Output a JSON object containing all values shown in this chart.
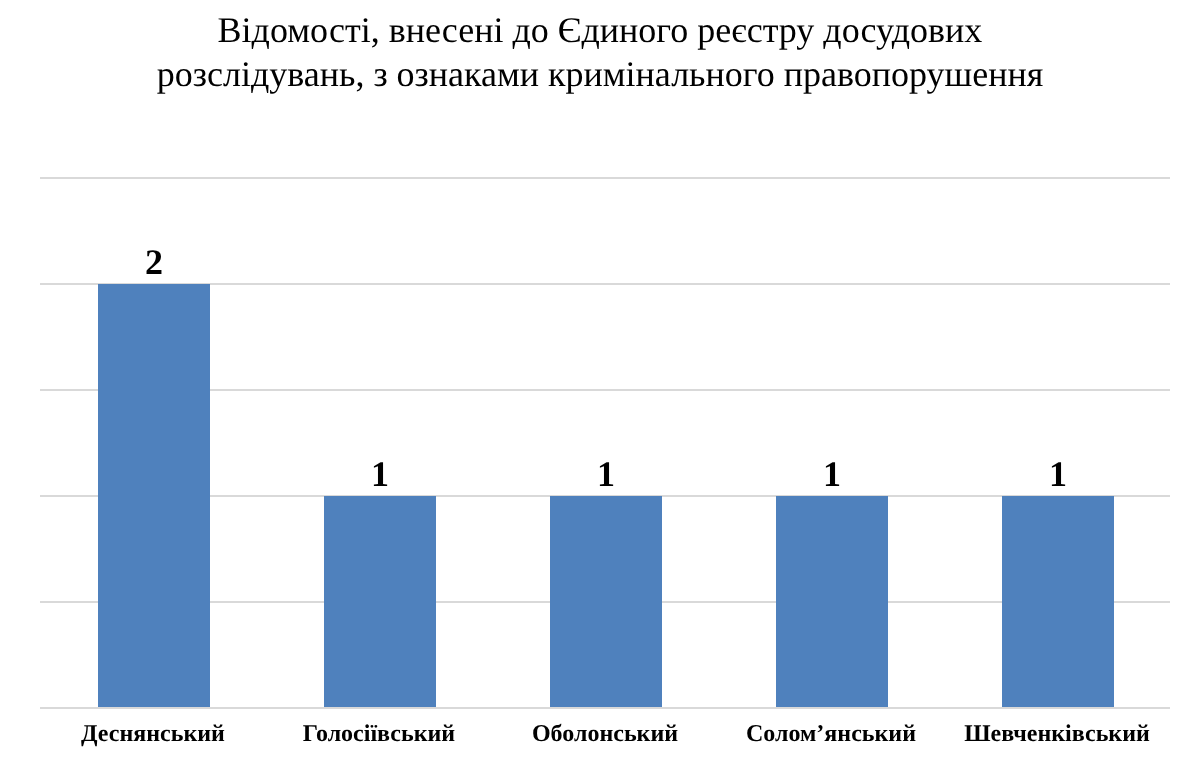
{
  "chart_data": {
    "type": "bar",
    "title": "Відомості, внесені до Єдиного реєстру досудових розслідувань, з ознаками кримінального правопорушення",
    "categories": [
      "Деснянський",
      "Голосіївський",
      "Оболонський",
      "Солом’янський",
      "Шевченківський"
    ],
    "values": [
      2,
      1,
      1,
      1,
      1
    ],
    "color": "#4f81bd",
    "ylim": [
      0,
      2.5
    ],
    "yticks": [
      {
        "value": 0,
        "label": null
      },
      {
        "value": 0.5,
        "label": null
      },
      {
        "value": 1,
        "label": null
      },
      {
        "value": 1.5,
        "label": null
      },
      {
        "value": 2,
        "label": null
      },
      {
        "value": 2.5,
        "label": null
      }
    ],
    "grid": "y",
    "tick_labels": "x",
    "data_labels": true
  }
}
